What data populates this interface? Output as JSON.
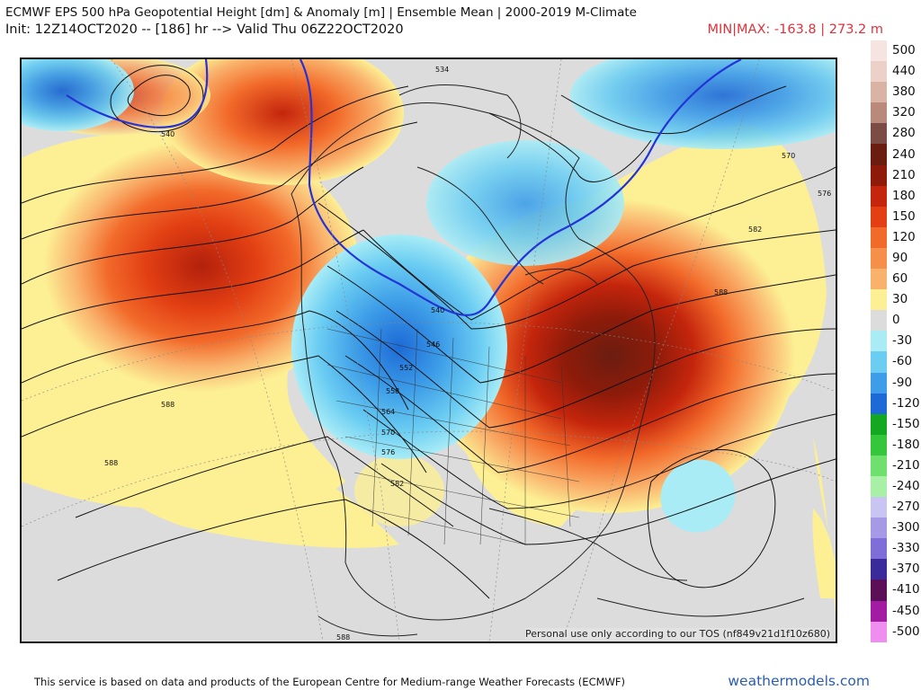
{
  "header": {
    "title": "ECMWF EPS 500 hPa Geopotential Height [dm] & Anomaly [m] | Ensemble Mean | 2000-2019 M-Climate",
    "subtitle": "Init: 12Z14OCT2020 -- [186] hr --> Valid Thu 06Z22OCT2020",
    "minmax": "MIN|MAX: -163.8 | 273.2 m"
  },
  "legend": {
    "items": [
      {
        "label": "500",
        "color": "#f6e4e0"
      },
      {
        "label": "440",
        "color": "#ecd1c8"
      },
      {
        "label": "380",
        "color": "#d9b3a6"
      },
      {
        "label": "320",
        "color": "#b98a7c"
      },
      {
        "label": "280",
        "color": "#7a4c44"
      },
      {
        "label": "240",
        "color": "#6b1d10"
      },
      {
        "label": "210",
        "color": "#8e1b0a"
      },
      {
        "label": "180",
        "color": "#c4250c"
      },
      {
        "label": "150",
        "color": "#e23f13"
      },
      {
        "label": "120",
        "color": "#f26a2a"
      },
      {
        "label": "90",
        "color": "#f68f4a"
      },
      {
        "label": "60",
        "color": "#f9b26c"
      },
      {
        "label": "30",
        "color": "#fcef94"
      },
      {
        "label": "0",
        "color": "#dcdcdc"
      },
      {
        "label": "-30",
        "color": "#a9ecf6"
      },
      {
        "label": "-60",
        "color": "#6bcdf2"
      },
      {
        "label": "-90",
        "color": "#3d9de8"
      },
      {
        "label": "-120",
        "color": "#1d6ad6"
      },
      {
        "label": "-150",
        "color": "#13a822"
      },
      {
        "label": "-180",
        "color": "#34c63b"
      },
      {
        "label": "-210",
        "color": "#6fe06e"
      },
      {
        "label": "-240",
        "color": "#a7f0a5"
      },
      {
        "label": "-270",
        "color": "#c9c4f2"
      },
      {
        "label": "-300",
        "color": "#a69ae7"
      },
      {
        "label": "-330",
        "color": "#7f6ed8"
      },
      {
        "label": "-370",
        "color": "#3a2a9a"
      },
      {
        "label": "-410",
        "color": "#5a0f56"
      },
      {
        "label": "-450",
        "color": "#a31aa3"
      },
      {
        "label": "-500",
        "color": "#f08ef0"
      }
    ],
    "extra_labels": [
      "0"
    ]
  },
  "map": {
    "contour_labels": [
      "534",
      "540",
      "546",
      "552",
      "558",
      "564",
      "570",
      "576",
      "582",
      "588"
    ],
    "tos_notice": "Personal use only according to our TOS (nf849v21d1f10z680)"
  },
  "footer": {
    "attribution": "This service is based on data and products of the European Centre for Medium-range Weather Forecasts (ECMWF)",
    "site": "weathermodels.com"
  }
}
